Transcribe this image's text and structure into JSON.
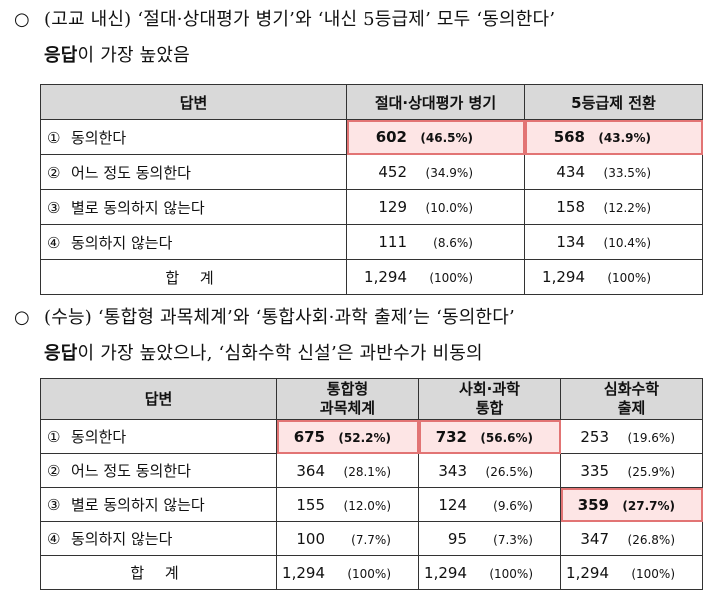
{
  "section1": {
    "bullet": "○",
    "line1_a": "(고교 내신) ‘절대·상대평가 병기’와 ‘내신 5등급제’ 모두 ‘동의한다’",
    "line2_strong": "응답",
    "line2_rest": "이 가장 높았음"
  },
  "table1": {
    "headers": [
      "답변",
      "절대·상대평가 병기",
      "5등급제 전환"
    ],
    "rows": [
      {
        "num": "①",
        "label": "동의한다",
        "c1": "602",
        "p1": "(46.5%)",
        "c2": "568",
        "p2": "(43.9%)"
      },
      {
        "num": "②",
        "label": "어느 정도 동의한다",
        "c1": "452",
        "p1": "(34.9%)",
        "c2": "434",
        "p2": "(33.5%)"
      },
      {
        "num": "③",
        "label": "별로 동의하지 않는다",
        "c1": "129",
        "p1": "(10.0%)",
        "c2": "158",
        "p2": "(12.2%)"
      },
      {
        "num": "④",
        "label": "동의하지 않는다",
        "c1": "111",
        "p1": "(8.6%)",
        "c2": "134",
        "p2": "(10.4%)"
      }
    ],
    "total": {
      "label": "합 계",
      "c1": "1,294",
      "p1": "(100%)",
      "c2": "1,294",
      "p2": "(100%)"
    }
  },
  "section2": {
    "bullet": "○",
    "line1": "(수능) ‘통합형 과목체계’와 ‘통합사회·과학 출제’는 ‘동의한다’",
    "line2_strong": "응답",
    "line2_rest": "이 가장 높았으나, ‘심화수학 신설’은 과반수가 비동의"
  },
  "table2": {
    "headers": [
      "답변",
      "통합형\n과목체계",
      "사회·과학\n통합",
      "심화수학\n출제"
    ],
    "header_lines": [
      [
        "답변"
      ],
      [
        "통합형",
        "과목체계"
      ],
      [
        "사회·과학",
        "통합"
      ],
      [
        "심화수학",
        "출제"
      ]
    ],
    "rows": [
      {
        "num": "①",
        "label": "동의한다",
        "c1": "675",
        "p1": "(52.2%)",
        "c2": "732",
        "p2": "(56.6%)",
        "c3": "253",
        "p3": "(19.6%)"
      },
      {
        "num": "②",
        "label": "어느 정도 동의한다",
        "c1": "364",
        "p1": "(28.1%)",
        "c2": "343",
        "p2": "(26.5%)",
        "c3": "335",
        "p3": "(25.9%)"
      },
      {
        "num": "③",
        "label": "별로 동의하지 않는다",
        "c1": "155",
        "p1": "(12.0%)",
        "c2": "124",
        "p2": "(9.6%)",
        "c3": "359",
        "p3": "(27.7%)"
      },
      {
        "num": "④",
        "label": "동의하지 않는다",
        "c1": "100",
        "p1": "(7.7%)",
        "c2": "95",
        "p2": "(7.3%)",
        "c3": "347",
        "p3": "(26.8%)"
      }
    ],
    "total": {
      "label": "합 계",
      "c1": "1,294",
      "p1": "(100%)",
      "c2": "1,294",
      "p2": "(100%)",
      "c3": "1,294",
      "p3": "(100%)"
    }
  },
  "colors": {
    "highlight_fill": "#fde5e5",
    "highlight_border": "#e27474",
    "header_fill": "#d9d9d9"
  }
}
